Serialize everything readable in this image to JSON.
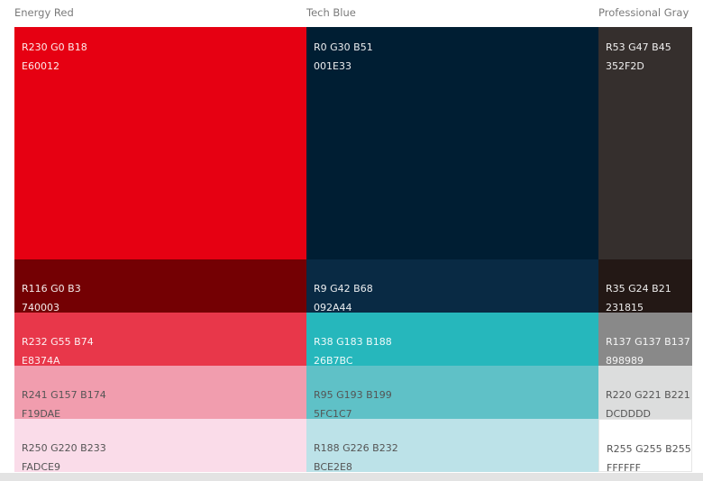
{
  "columns": [
    {
      "title": "Energy Red",
      "swatches": [
        {
          "rgb": "R230 G0 B18",
          "hex": "E60012"
        },
        {
          "rgb": "R116 G0 B3",
          "hex": "740003"
        },
        {
          "rgb": "R232 G55 B74",
          "hex": "E8374A"
        },
        {
          "rgb": "R241 G157 B174",
          "hex": "F19DAE"
        },
        {
          "rgb": "R250 G220 B233",
          "hex": "FADCE9"
        }
      ]
    },
    {
      "title": "Tech Blue",
      "swatches": [
        {
          "rgb": "R0 G30 B51",
          "hex": "001E33"
        },
        {
          "rgb": "R9 G42 B68",
          "hex": "092A44"
        },
        {
          "rgb": "R38 G183 B188",
          "hex": "26B7BC"
        },
        {
          "rgb": "R95 G193 B199",
          "hex": "5FC1C7"
        },
        {
          "rgb": "R188 G226 B232",
          "hex": "BCE2E8"
        }
      ]
    },
    {
      "title": "Professional Gray",
      "swatches": [
        {
          "rgb": "R53 G47 B45",
          "hex": "352F2D"
        },
        {
          "rgb": "R35 G24 B21",
          "hex": "231815"
        },
        {
          "rgb": "R137 G137 B137",
          "hex": "898989"
        },
        {
          "rgb": "R220 G221 B221",
          "hex": "DCDDDD"
        },
        {
          "rgb": "R255 G255 B255",
          "hex": "FFFFFF"
        }
      ]
    }
  ]
}
